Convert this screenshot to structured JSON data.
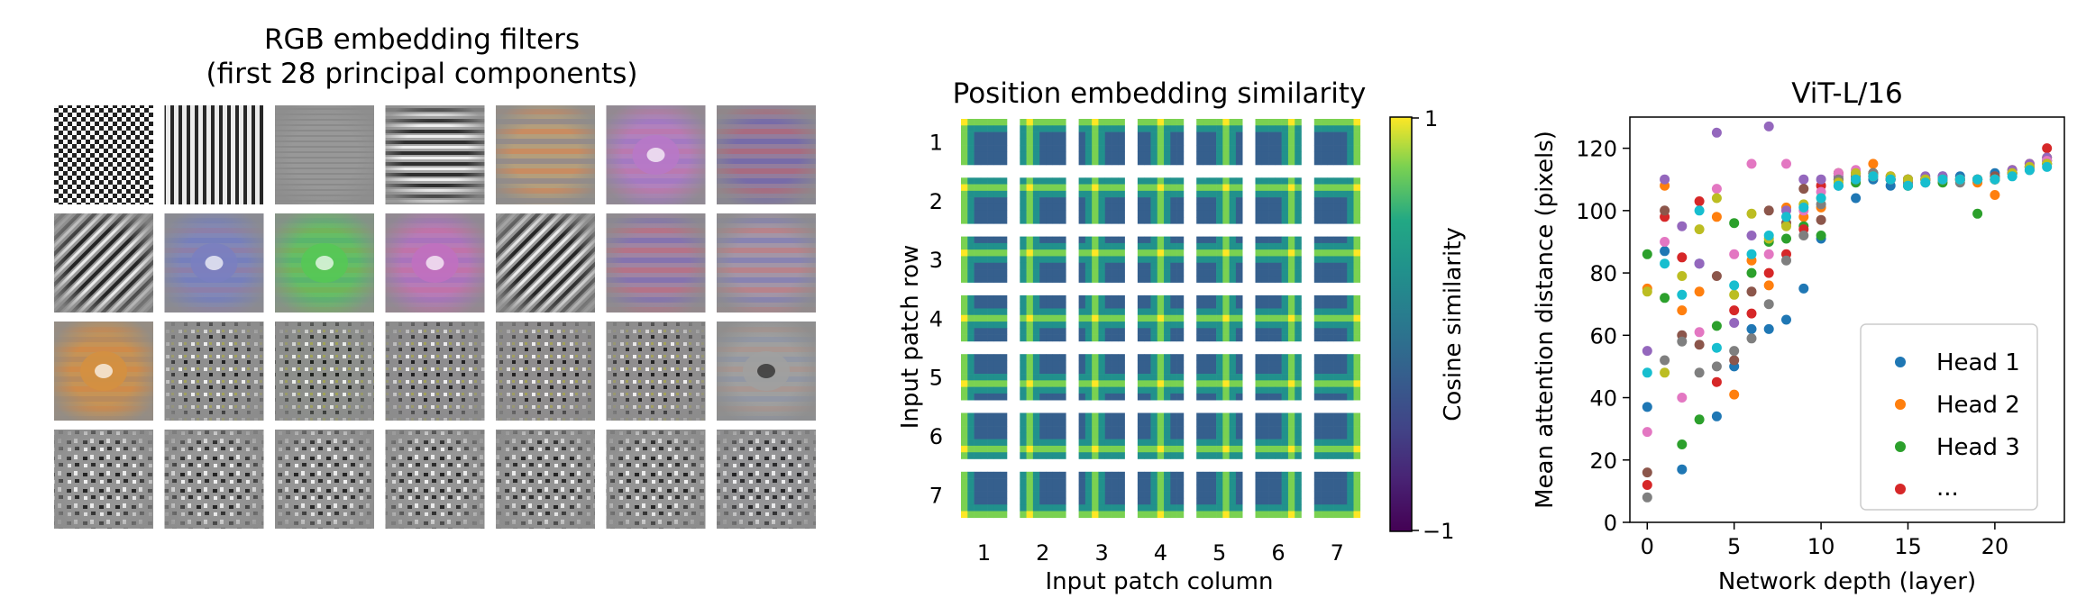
{
  "chart_data": [
    {
      "type": "image-grid",
      "title_line1": "RGB embedding filters",
      "title_line2": "(first 28 principal components)",
      "rows": 4,
      "cols": 7,
      "filters": [
        {
          "style": "checker",
          "tint": "#8c8c8c"
        },
        {
          "style": "vstripes",
          "tint": "#8c8c8c"
        },
        {
          "style": "hfaint",
          "tint": "#8c8c8c"
        },
        {
          "style": "hstripes",
          "tint": "#8c8c8c"
        },
        {
          "style": "hbands",
          "tint": "#d4a25a"
        },
        {
          "style": "blob",
          "tint": "#b878c8"
        },
        {
          "style": "hbands",
          "tint": "#8a5aa0"
        },
        {
          "style": "diag",
          "tint": "#8c8c8c"
        },
        {
          "style": "blob",
          "tint": "#7a80c0"
        },
        {
          "style": "blob",
          "tint": "#55c855"
        },
        {
          "style": "blob",
          "tint": "#c070c0"
        },
        {
          "style": "diag",
          "tint": "#9a9a9a"
        },
        {
          "style": "hbands",
          "tint": "#a86ab0"
        },
        {
          "style": "hbands",
          "tint": "#b090b8"
        },
        {
          "style": "blob",
          "tint": "#d49040"
        },
        {
          "style": "grid",
          "tint": "#9a9aa8"
        },
        {
          "style": "grid",
          "tint": "#70a060"
        },
        {
          "style": "grid",
          "tint": "#8a7aa8"
        },
        {
          "style": "grid",
          "tint": "#a07a90"
        },
        {
          "style": "grid",
          "tint": "#b08aa0"
        },
        {
          "style": "ring",
          "tint": "#a0a0a0"
        },
        {
          "style": "noise",
          "tint": "#9a9a9a"
        },
        {
          "style": "noise",
          "tint": "#9a9a9a"
        },
        {
          "style": "noise",
          "tint": "#a0a0a0"
        },
        {
          "style": "noise",
          "tint": "#a0a0a0"
        },
        {
          "style": "noise",
          "tint": "#9a9a9a"
        },
        {
          "style": "noise",
          "tint": "#9a9a9a"
        },
        {
          "style": "noise",
          "tint": "#8a8aa8"
        }
      ]
    },
    {
      "type": "heatmap",
      "title": "Position embedding similarity",
      "xlabel": "Input patch column",
      "ylabel": "Input patch row",
      "xticks": [
        "1",
        "2",
        "3",
        "4",
        "5",
        "6",
        "7"
      ],
      "yticks": [
        "1",
        "2",
        "3",
        "4",
        "5",
        "6",
        "7"
      ],
      "colorbar_label": "Cosine similarity",
      "colorbar_range": [
        -1,
        1
      ],
      "colorbar_ticks": [
        "1",
        "−1"
      ]
    },
    {
      "type": "scatter",
      "title": "ViT-L/16",
      "xlabel": "Network depth (layer)",
      "ylabel": "Mean attention distance (pixels)",
      "xlim": [
        -1,
        24
      ],
      "ylim": [
        0,
        130
      ],
      "xticks": [
        0,
        5,
        10,
        15,
        20
      ],
      "yticks": [
        0,
        20,
        40,
        60,
        80,
        100,
        120
      ],
      "legend": {
        "position": "lower-right",
        "entries": [
          {
            "label": "Head 1",
            "color": "#1f77b4"
          },
          {
            "label": "Head 2",
            "color": "#ff7f0e"
          },
          {
            "label": "Head 3",
            "color": "#2ca02c"
          },
          {
            "label": "...",
            "color": "#d62728"
          }
        ]
      },
      "colors": [
        "#1f77b4",
        "#ff7f0e",
        "#2ca02c",
        "#d62728",
        "#9467bd",
        "#8c564b",
        "#e377c2",
        "#7f7f7f",
        "#bcbd22",
        "#17becf"
      ],
      "series": [
        {
          "name": "Head 1",
          "y": [
            37,
            87,
            17,
            83,
            34,
            50,
            62,
            62,
            65,
            75,
            91,
            108,
            104,
            110,
            108,
            110,
            110,
            111,
            111,
            110,
            112,
            112,
            114,
            116
          ]
        },
        {
          "name": "Head 2",
          "y": [
            75,
            108,
            68,
            74,
            98,
            41,
            84,
            76,
            101,
            98,
            101,
            110,
            112,
            115,
            111,
            108,
            110,
            110,
            110,
            109,
            105,
            113,
            115,
            117
          ]
        },
        {
          "name": "Head 3",
          "y": [
            86,
            72,
            25,
            33,
            63,
            96,
            80,
            90,
            91,
            95,
            92,
            112,
            109,
            112,
            110,
            108,
            110,
            109,
            110,
            99,
            110,
            112,
            114,
            115
          ]
        },
        {
          "name": "...",
          "y": [
            12,
            98,
            85,
            103,
            45,
            68,
            67,
            80,
            86,
            94,
            108,
            112,
            110,
            111,
            110,
            110,
            110,
            110,
            110,
            110,
            110,
            112,
            114,
            120
          ]
        },
        {
          "name": "",
          "y": [
            55,
            110,
            95,
            83,
            125,
            64,
            92,
            127,
            100,
            110,
            110,
            111,
            112,
            111,
            110,
            110,
            111,
            111,
            110,
            110,
            111,
            113,
            115,
            117
          ]
        },
        {
          "name": "",
          "y": [
            16,
            100,
            60,
            57,
            79,
            52,
            74,
            100,
            96,
            107,
            97,
            110,
            111,
            112,
            110,
            110,
            109,
            110,
            110,
            110,
            111,
            112,
            114,
            116
          ]
        },
        {
          "name": "",
          "y": [
            29,
            90,
            40,
            61,
            107,
            86,
            115,
            86,
            115,
            100,
            106,
            112,
            113,
            111,
            111,
            109,
            110,
            110,
            110,
            110,
            110,
            112,
            114,
            116
          ]
        },
        {
          "name": "",
          "y": [
            8,
            52,
            58,
            48,
            50,
            55,
            59,
            70,
            84,
            92,
            102,
            110,
            111,
            112,
            110,
            109,
            110,
            110,
            109,
            110,
            110,
            112,
            113,
            115
          ]
        },
        {
          "name": "",
          "y": [
            74,
            48,
            79,
            94,
            104,
            73,
            99,
            91,
            95,
            102,
            104,
            109,
            112,
            111,
            111,
            110,
            110,
            110,
            110,
            110,
            110,
            112,
            114,
            115
          ]
        },
        {
          "name": "",
          "y": [
            48,
            83,
            73,
            100,
            56,
            76,
            86,
            92,
            98,
            101,
            104,
            108,
            110,
            111,
            110,
            108,
            109,
            110,
            110,
            110,
            110,
            111,
            113,
            114
          ]
        }
      ]
    }
  ]
}
